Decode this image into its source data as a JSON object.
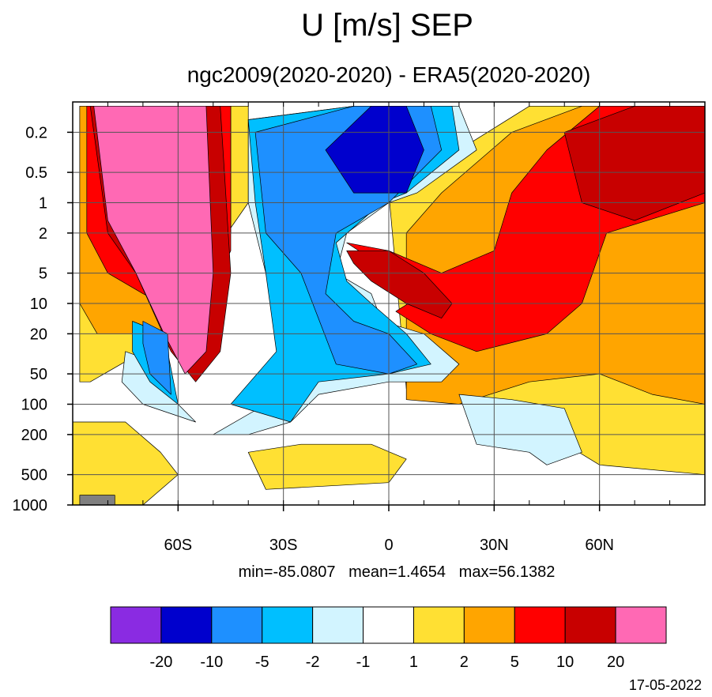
{
  "chart_data": {
    "type": "contour",
    "title": "U [m/s] SEP",
    "subtitle": "ngc2009(2020-2020) - ERA5(2020-2020)",
    "stats": "min=-85.0807   mean=1.4654   max=56.1382",
    "date": "17-05-2022",
    "x_axis": {
      "range": [
        -90,
        90
      ],
      "ticks": [
        {
          "value": -60,
          "label": "60S"
        },
        {
          "value": -30,
          "label": "30S"
        },
        {
          "value": 0,
          "label": "0"
        },
        {
          "value": 30,
          "label": "30N"
        },
        {
          "value": 60,
          "label": "60N"
        }
      ],
      "grid": true
    },
    "y_axis": {
      "scale": "log",
      "range": [
        1000,
        0.1
      ],
      "ticks": [
        {
          "value": 0.2,
          "label": "0.2"
        },
        {
          "value": 0.5,
          "label": "0.5"
        },
        {
          "value": 1,
          "label": "1"
        },
        {
          "value": 2,
          "label": "2"
        },
        {
          "value": 5,
          "label": "5"
        },
        {
          "value": 10,
          "label": "10"
        },
        {
          "value": 20,
          "label": "20"
        },
        {
          "value": 50,
          "label": "50"
        },
        {
          "value": 100,
          "label": "100"
        },
        {
          "value": 200,
          "label": "200"
        },
        {
          "value": 500,
          "label": "500"
        },
        {
          "value": 1000,
          "label": "1000"
        }
      ],
      "grid": true
    },
    "colorbar": {
      "colors": [
        "#8a2be2",
        "#0000cd",
        "#1e90ff",
        "#00bfff",
        "#d2f4ff",
        "#ffffff",
        "#ffe033",
        "#ffa500",
        "#ff0000",
        "#c80000",
        "#ff69b4"
      ],
      "labels": [
        "-20",
        "-10",
        "-5",
        "-2",
        "-1",
        "1",
        "2",
        "5",
        "10",
        "20"
      ],
      "placement": "bottom"
    },
    "regions": [
      {
        "level": 6,
        "points": [
          [
            -88,
            0.11
          ],
          [
            -40,
            0.11
          ],
          [
            -40,
            1
          ],
          [
            -60,
            10
          ],
          [
            -70,
            30
          ],
          [
            -85,
            60
          ],
          [
            -88,
            60
          ]
        ]
      },
      {
        "level": 6,
        "points": [
          [
            0,
            0.8
          ],
          [
            20,
            0.3
          ],
          [
            40,
            0.11
          ],
          [
            90,
            0.11
          ],
          [
            90,
            500
          ],
          [
            60,
            400
          ],
          [
            40,
            150
          ],
          [
            20,
            80
          ],
          [
            5,
            70
          ]
        ]
      },
      {
        "level": 6,
        "points": [
          [
            -90,
            150
          ],
          [
            -75,
            150
          ],
          [
            -65,
            300
          ],
          [
            -60,
            500
          ],
          [
            -70,
            1000
          ],
          [
            -90,
            1000
          ]
        ]
      },
      {
        "level": 6,
        "points": [
          [
            -40,
            300
          ],
          [
            -25,
            250
          ],
          [
            -5,
            250
          ],
          [
            5,
            350
          ],
          [
            0,
            600
          ],
          [
            -35,
            700
          ]
        ]
      },
      {
        "level": 7,
        "points": [
          [
            -88,
            0.11
          ],
          [
            -45,
            0.11
          ],
          [
            -45,
            2
          ],
          [
            -58,
            15
          ],
          [
            -68,
            20
          ],
          [
            -83,
            20
          ],
          [
            -88,
            10
          ]
        ]
      },
      {
        "level": 7,
        "points": [
          [
            5,
            2
          ],
          [
            15,
            0.8
          ],
          [
            35,
            0.2
          ],
          [
            55,
            0.11
          ],
          [
            90,
            0.11
          ],
          [
            90,
            100
          ],
          [
            75,
            80
          ],
          [
            60,
            50
          ],
          [
            40,
            60
          ],
          [
            20,
            100
          ],
          [
            5,
            90
          ]
        ]
      },
      {
        "level": 8,
        "points": [
          [
            -86,
            0.11
          ],
          [
            -45,
            0.11
          ],
          [
            -45,
            3
          ],
          [
            -55,
            15
          ],
          [
            -70,
            8
          ],
          [
            -80,
            5
          ],
          [
            -86,
            2
          ]
        ]
      },
      {
        "level": 8,
        "points": [
          [
            -12,
            2.5
          ],
          [
            0,
            3
          ],
          [
            15,
            5
          ],
          [
            30,
            3
          ],
          [
            35,
            0.8
          ],
          [
            45,
            0.3
          ],
          [
            60,
            0.11
          ],
          [
            90,
            0.11
          ],
          [
            90,
            1
          ],
          [
            62,
            2
          ],
          [
            55,
            10
          ],
          [
            45,
            20
          ],
          [
            25,
            30
          ],
          [
            12,
            20
          ],
          [
            2,
            12
          ],
          [
            10,
            8
          ]
        ]
      },
      {
        "level": 9,
        "points": [
          [
            -85,
            0.11
          ],
          [
            -48,
            0.11
          ],
          [
            -45,
            5
          ],
          [
            -48,
            30
          ],
          [
            -55,
            60
          ],
          [
            -62,
            30
          ],
          [
            -72,
            5
          ],
          [
            -80,
            2
          ]
        ]
      },
      {
        "level": 9,
        "points": [
          [
            -12,
            3
          ],
          [
            0,
            3
          ],
          [
            10,
            5
          ],
          [
            18,
            10
          ],
          [
            15,
            14
          ],
          [
            5,
            10
          ],
          [
            -5,
            6
          ],
          [
            -10,
            4
          ]
        ]
      },
      {
        "level": 9,
        "points": [
          [
            50,
            0.2
          ],
          [
            70,
            0.11
          ],
          [
            90,
            0.11
          ],
          [
            90,
            0.8
          ],
          [
            70,
            1.5
          ],
          [
            55,
            1
          ]
        ]
      },
      {
        "level": 10,
        "points": [
          [
            -84,
            0.11
          ],
          [
            -52,
            0.11
          ],
          [
            -50,
            5
          ],
          [
            -52,
            30
          ],
          [
            -58,
            50
          ],
          [
            -64,
            20
          ],
          [
            -72,
            5
          ],
          [
            -80,
            1.5
          ]
        ]
      },
      {
        "level": 4,
        "points": [
          [
            -40,
            0.15
          ],
          [
            -10,
            0.11
          ],
          [
            20,
            0.11
          ],
          [
            25,
            0.3
          ],
          [
            8,
            0.8
          ],
          [
            0,
            1
          ],
          [
            -12,
            2
          ],
          [
            -15,
            5
          ],
          [
            -5,
            8
          ],
          [
            -2,
            15
          ],
          [
            10,
            20
          ],
          [
            20,
            40
          ],
          [
            15,
            60
          ],
          [
            0,
            60
          ],
          [
            -20,
            80
          ],
          [
            -28,
            150
          ],
          [
            -40,
            200
          ],
          [
            -50,
            200
          ],
          [
            -35,
            100
          ],
          [
            -30,
            30
          ],
          [
            -35,
            5
          ],
          [
            -40,
            1
          ]
        ]
      },
      {
        "level": 4,
        "points": [
          [
            -75,
            30
          ],
          [
            -65,
            40
          ],
          [
            -60,
            100
          ],
          [
            -55,
            150
          ],
          [
            -70,
            100
          ],
          [
            -76,
            60
          ]
        ]
      },
      {
        "level": 4,
        "points": [
          [
            20,
            80
          ],
          [
            35,
            90
          ],
          [
            50,
            110
          ],
          [
            55,
            300
          ],
          [
            45,
            400
          ],
          [
            40,
            300
          ],
          [
            25,
            250
          ]
        ]
      },
      {
        "level": 3,
        "points": [
          [
            -40,
            0.15
          ],
          [
            -10,
            0.11
          ],
          [
            18,
            0.11
          ],
          [
            20,
            0.3
          ],
          [
            5,
            0.8
          ],
          [
            -2,
            1
          ],
          [
            -15,
            2.5
          ],
          [
            -12,
            6
          ],
          [
            -5,
            10
          ],
          [
            5,
            20
          ],
          [
            12,
            40
          ],
          [
            0,
            50
          ],
          [
            -20,
            60
          ],
          [
            -28,
            150
          ],
          [
            -45,
            100
          ],
          [
            -32,
            30
          ],
          [
            -35,
            5
          ],
          [
            -38,
            1
          ]
        ]
      },
      {
        "level": 3,
        "points": [
          [
            -73,
            15
          ],
          [
            -64,
            20
          ],
          [
            -60,
            100
          ],
          [
            -68,
            60
          ],
          [
            -73,
            30
          ]
        ]
      },
      {
        "level": 2,
        "points": [
          [
            -38,
            0.2
          ],
          [
            -10,
            0.11
          ],
          [
            12,
            0.11
          ],
          [
            15,
            0.3
          ],
          [
            0,
            1
          ],
          [
            -15,
            2
          ],
          [
            -18,
            8
          ],
          [
            -10,
            15
          ],
          [
            0,
            20
          ],
          [
            8,
            40
          ],
          [
            0,
            50
          ],
          [
            -15,
            40
          ],
          [
            -25,
            5
          ],
          [
            -35,
            2
          ]
        ]
      },
      {
        "level": 2,
        "points": [
          [
            -70,
            15
          ],
          [
            -63,
            20
          ],
          [
            -62,
            80
          ],
          [
            -68,
            50
          ],
          [
            -70,
            25
          ]
        ]
      },
      {
        "level": 1,
        "points": [
          [
            -18,
            0.3
          ],
          [
            -5,
            0.11
          ],
          [
            5,
            0.11
          ],
          [
            10,
            0.3
          ],
          [
            5,
            0.8
          ],
          [
            -10,
            0.8
          ]
        ]
      },
      {
        "level": 0,
        "points": [
          [
            -78,
            1000
          ],
          [
            -88,
            1000
          ],
          [
            -88,
            800
          ],
          [
            -78,
            800
          ]
        ],
        "fill": "#808080"
      }
    ]
  }
}
